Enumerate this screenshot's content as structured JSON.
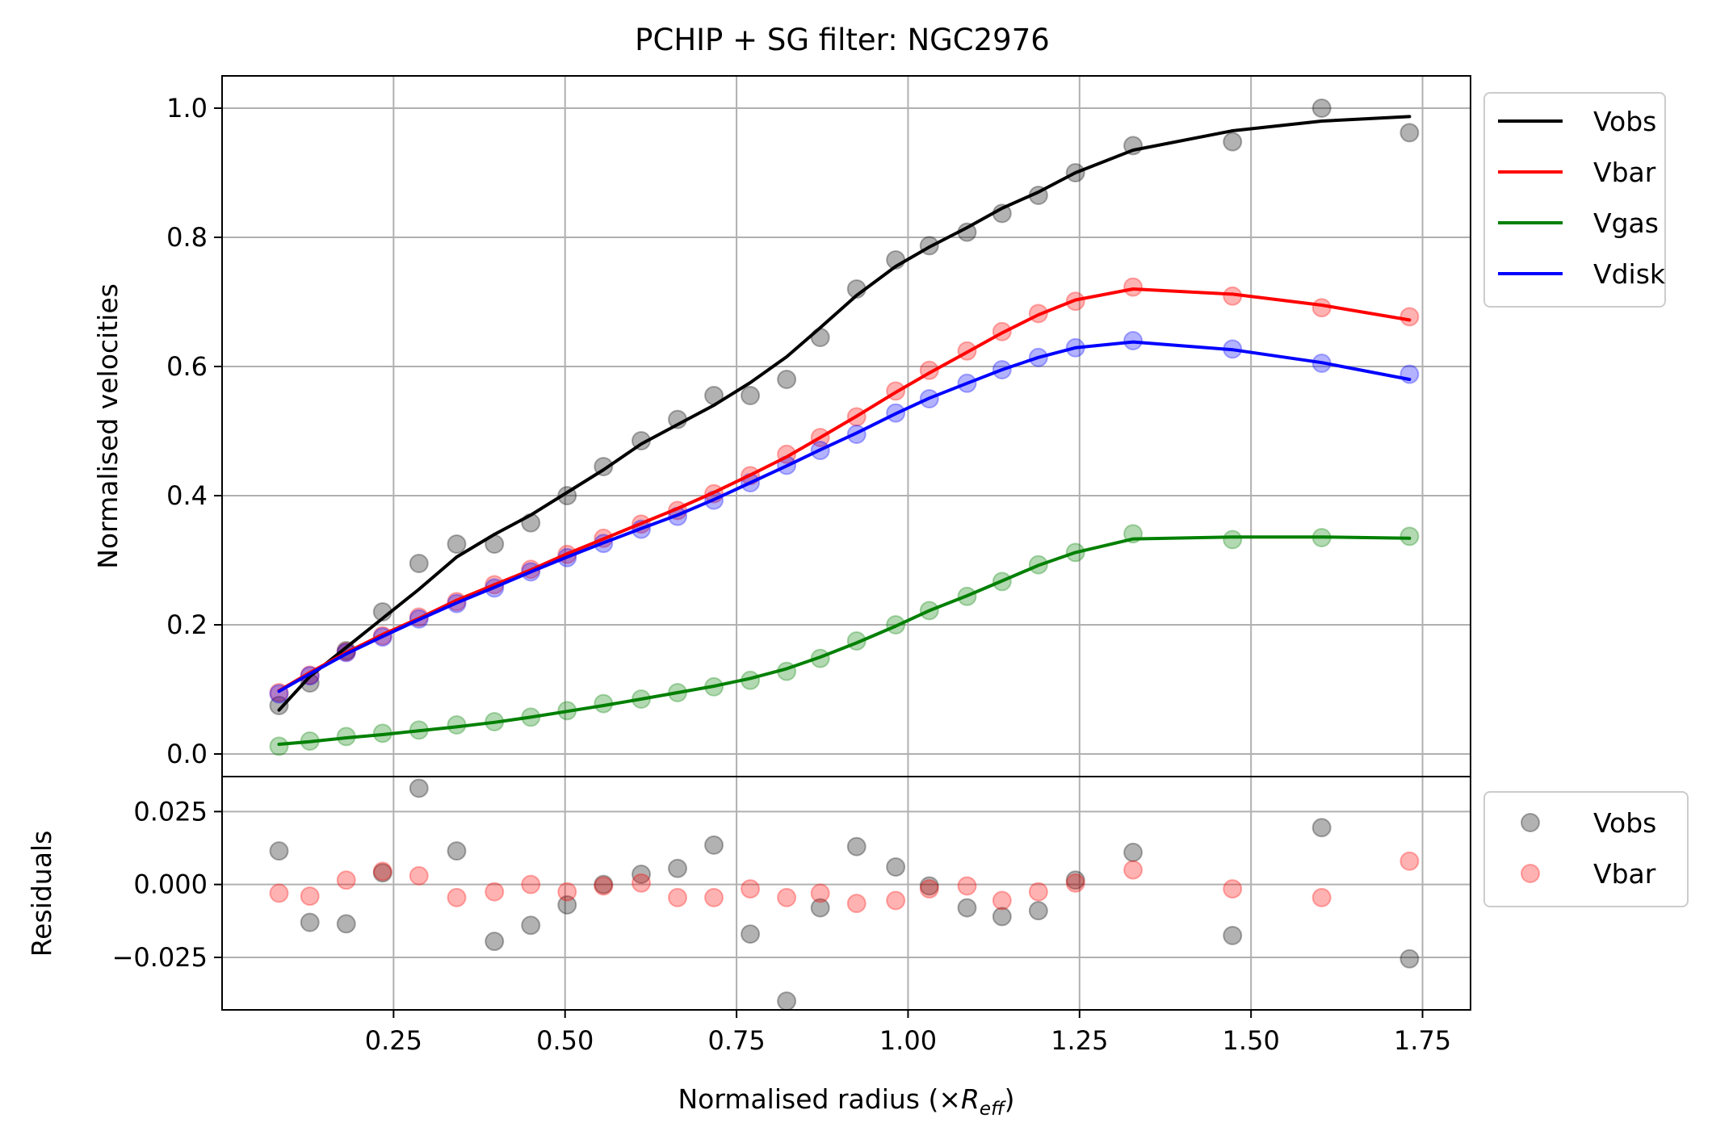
{
  "chart_data": [
    {
      "type": "line",
      "title": "PCHIP + SG filter: NGC2976",
      "xlabel": "",
      "ylabel": "Normalised velocities",
      "xlim": [
        0.0,
        1.82
      ],
      "ylim": [
        -0.035,
        1.05
      ],
      "xticks": [],
      "yticks": [
        0.0,
        0.2,
        0.4,
        0.6,
        0.8,
        1.0
      ],
      "ytick_labels": [
        "0.0",
        "0.2",
        "0.4",
        "0.6",
        "0.8",
        "1.0"
      ],
      "grid": true,
      "legend": "outside-right-top",
      "x": [
        0.083,
        0.128,
        0.181,
        0.234,
        0.287,
        0.342,
        0.397,
        0.45,
        0.503,
        0.556,
        0.611,
        0.664,
        0.717,
        0.77,
        0.823,
        0.872,
        0.925,
        0.982,
        1.031,
        1.086,
        1.137,
        1.19,
        1.244,
        1.328,
        1.473,
        1.603,
        1.731
      ],
      "series": [
        {
          "name": "Vobs",
          "color": "#000000",
          "values": [
            0.075,
            0.11,
            0.16,
            0.22,
            0.295,
            0.325,
            0.325,
            0.358,
            0.4,
            0.445,
            0.485,
            0.518,
            0.555,
            0.555,
            0.58,
            0.645,
            0.72,
            0.765,
            0.787,
            0.808,
            0.837,
            0.865,
            0.9,
            0.942,
            0.948,
            1.0,
            0.962
          ],
          "fit": [
            0.068,
            0.12,
            0.165,
            0.21,
            0.255,
            0.305,
            0.34,
            0.37,
            0.405,
            0.44,
            0.48,
            0.51,
            0.54,
            0.575,
            0.615,
            0.66,
            0.71,
            0.755,
            0.785,
            0.815,
            0.845,
            0.87,
            0.9,
            0.935,
            0.965,
            0.98,
            0.987
          ]
        },
        {
          "name": "Vbar",
          "color": "#ff0000",
          "values": [
            0.095,
            0.122,
            0.158,
            0.183,
            0.212,
            0.236,
            0.262,
            0.286,
            0.309,
            0.334,
            0.356,
            0.377,
            0.403,
            0.431,
            0.464,
            0.49,
            0.522,
            0.562,
            0.594,
            0.624,
            0.654,
            0.682,
            0.701,
            0.723,
            0.709,
            0.691,
            0.677
          ],
          "fit": [
            0.098,
            0.126,
            0.157,
            0.185,
            0.21,
            0.238,
            0.262,
            0.285,
            0.31,
            0.333,
            0.357,
            0.38,
            0.405,
            0.432,
            0.46,
            0.49,
            0.523,
            0.56,
            0.59,
            0.622,
            0.652,
            0.68,
            0.703,
            0.72,
            0.712,
            0.695,
            0.672
          ]
        },
        {
          "name": "Vgas",
          "color": "#008000",
          "values": [
            0.012,
            0.02,
            0.027,
            0.032,
            0.037,
            0.045,
            0.05,
            0.057,
            0.067,
            0.078,
            0.085,
            0.095,
            0.104,
            0.114,
            0.128,
            0.148,
            0.175,
            0.2,
            0.222,
            0.244,
            0.267,
            0.293,
            0.312,
            0.341,
            0.332,
            0.335,
            0.337
          ],
          "fit": [
            0.015,
            0.019,
            0.025,
            0.03,
            0.036,
            0.042,
            0.049,
            0.057,
            0.066,
            0.075,
            0.085,
            0.095,
            0.105,
            0.117,
            0.132,
            0.15,
            0.172,
            0.198,
            0.222,
            0.245,
            0.268,
            0.292,
            0.312,
            0.333,
            0.336,
            0.336,
            0.334
          ]
        },
        {
          "name": "Vdisk",
          "color": "#0000ff",
          "values": [
            0.093,
            0.121,
            0.157,
            0.181,
            0.209,
            0.233,
            0.257,
            0.282,
            0.304,
            0.326,
            0.348,
            0.368,
            0.393,
            0.42,
            0.447,
            0.47,
            0.495,
            0.528,
            0.55,
            0.574,
            0.595,
            0.614,
            0.629,
            0.64,
            0.627,
            0.605,
            0.588
          ],
          "fit": [
            0.097,
            0.124,
            0.155,
            0.182,
            0.208,
            0.234,
            0.258,
            0.282,
            0.305,
            0.327,
            0.349,
            0.37,
            0.394,
            0.42,
            0.446,
            0.471,
            0.497,
            0.527,
            0.551,
            0.574,
            0.595,
            0.614,
            0.629,
            0.638,
            0.626,
            0.606,
            0.58
          ]
        }
      ]
    },
    {
      "type": "scatter",
      "xlabel": "Normalised radius (×R_eff)",
      "ylabel": "Residuals",
      "xlim": [
        0.0,
        1.82
      ],
      "ylim": [
        -0.043,
        0.037
      ],
      "xticks": [
        0.25,
        0.5,
        0.75,
        1.0,
        1.25,
        1.5,
        1.75
      ],
      "xtick_labels": [
        "0.25",
        "0.50",
        "0.75",
        "1.00",
        "1.25",
        "1.50",
        "1.75"
      ],
      "yticks": [
        -0.025,
        0.0,
        0.025
      ],
      "ytick_labels": [
        "−0.025",
        "0.000",
        "0.025"
      ],
      "grid": true,
      "legend": "outside-right-top",
      "x": [
        0.083,
        0.128,
        0.181,
        0.234,
        0.287,
        0.342,
        0.397,
        0.45,
        0.503,
        0.556,
        0.611,
        0.664,
        0.717,
        0.77,
        0.823,
        0.872,
        0.925,
        0.982,
        1.031,
        1.086,
        1.137,
        1.19,
        1.244,
        1.328,
        1.473,
        1.603,
        1.731
      ],
      "series": [
        {
          "name": "Vobs",
          "color": "#000000",
          "values": [
            0.0115,
            -0.013,
            -0.0135,
            0.004,
            0.033,
            0.0115,
            -0.0195,
            -0.014,
            -0.007,
            0.0,
            0.0035,
            0.0055,
            0.0135,
            -0.017,
            -0.04,
            -0.008,
            0.013,
            0.006,
            -0.0005,
            -0.008,
            -0.011,
            -0.009,
            0.0015,
            0.011,
            -0.0175,
            0.0195,
            -0.0255
          ]
        },
        {
          "name": "Vbar",
          "color": "#ff0000",
          "values": [
            -0.003,
            -0.004,
            0.0015,
            0.0045,
            0.003,
            -0.0045,
            -0.0025,
            0.0,
            -0.0025,
            -0.0005,
            0.0005,
            -0.0045,
            -0.0045,
            -0.0015,
            -0.0045,
            -0.003,
            -0.0065,
            -0.0055,
            -0.0015,
            -0.0005,
            -0.0055,
            -0.0025,
            0.0005,
            0.005,
            -0.0015,
            -0.0045,
            0.008
          ]
        }
      ]
    }
  ]
}
